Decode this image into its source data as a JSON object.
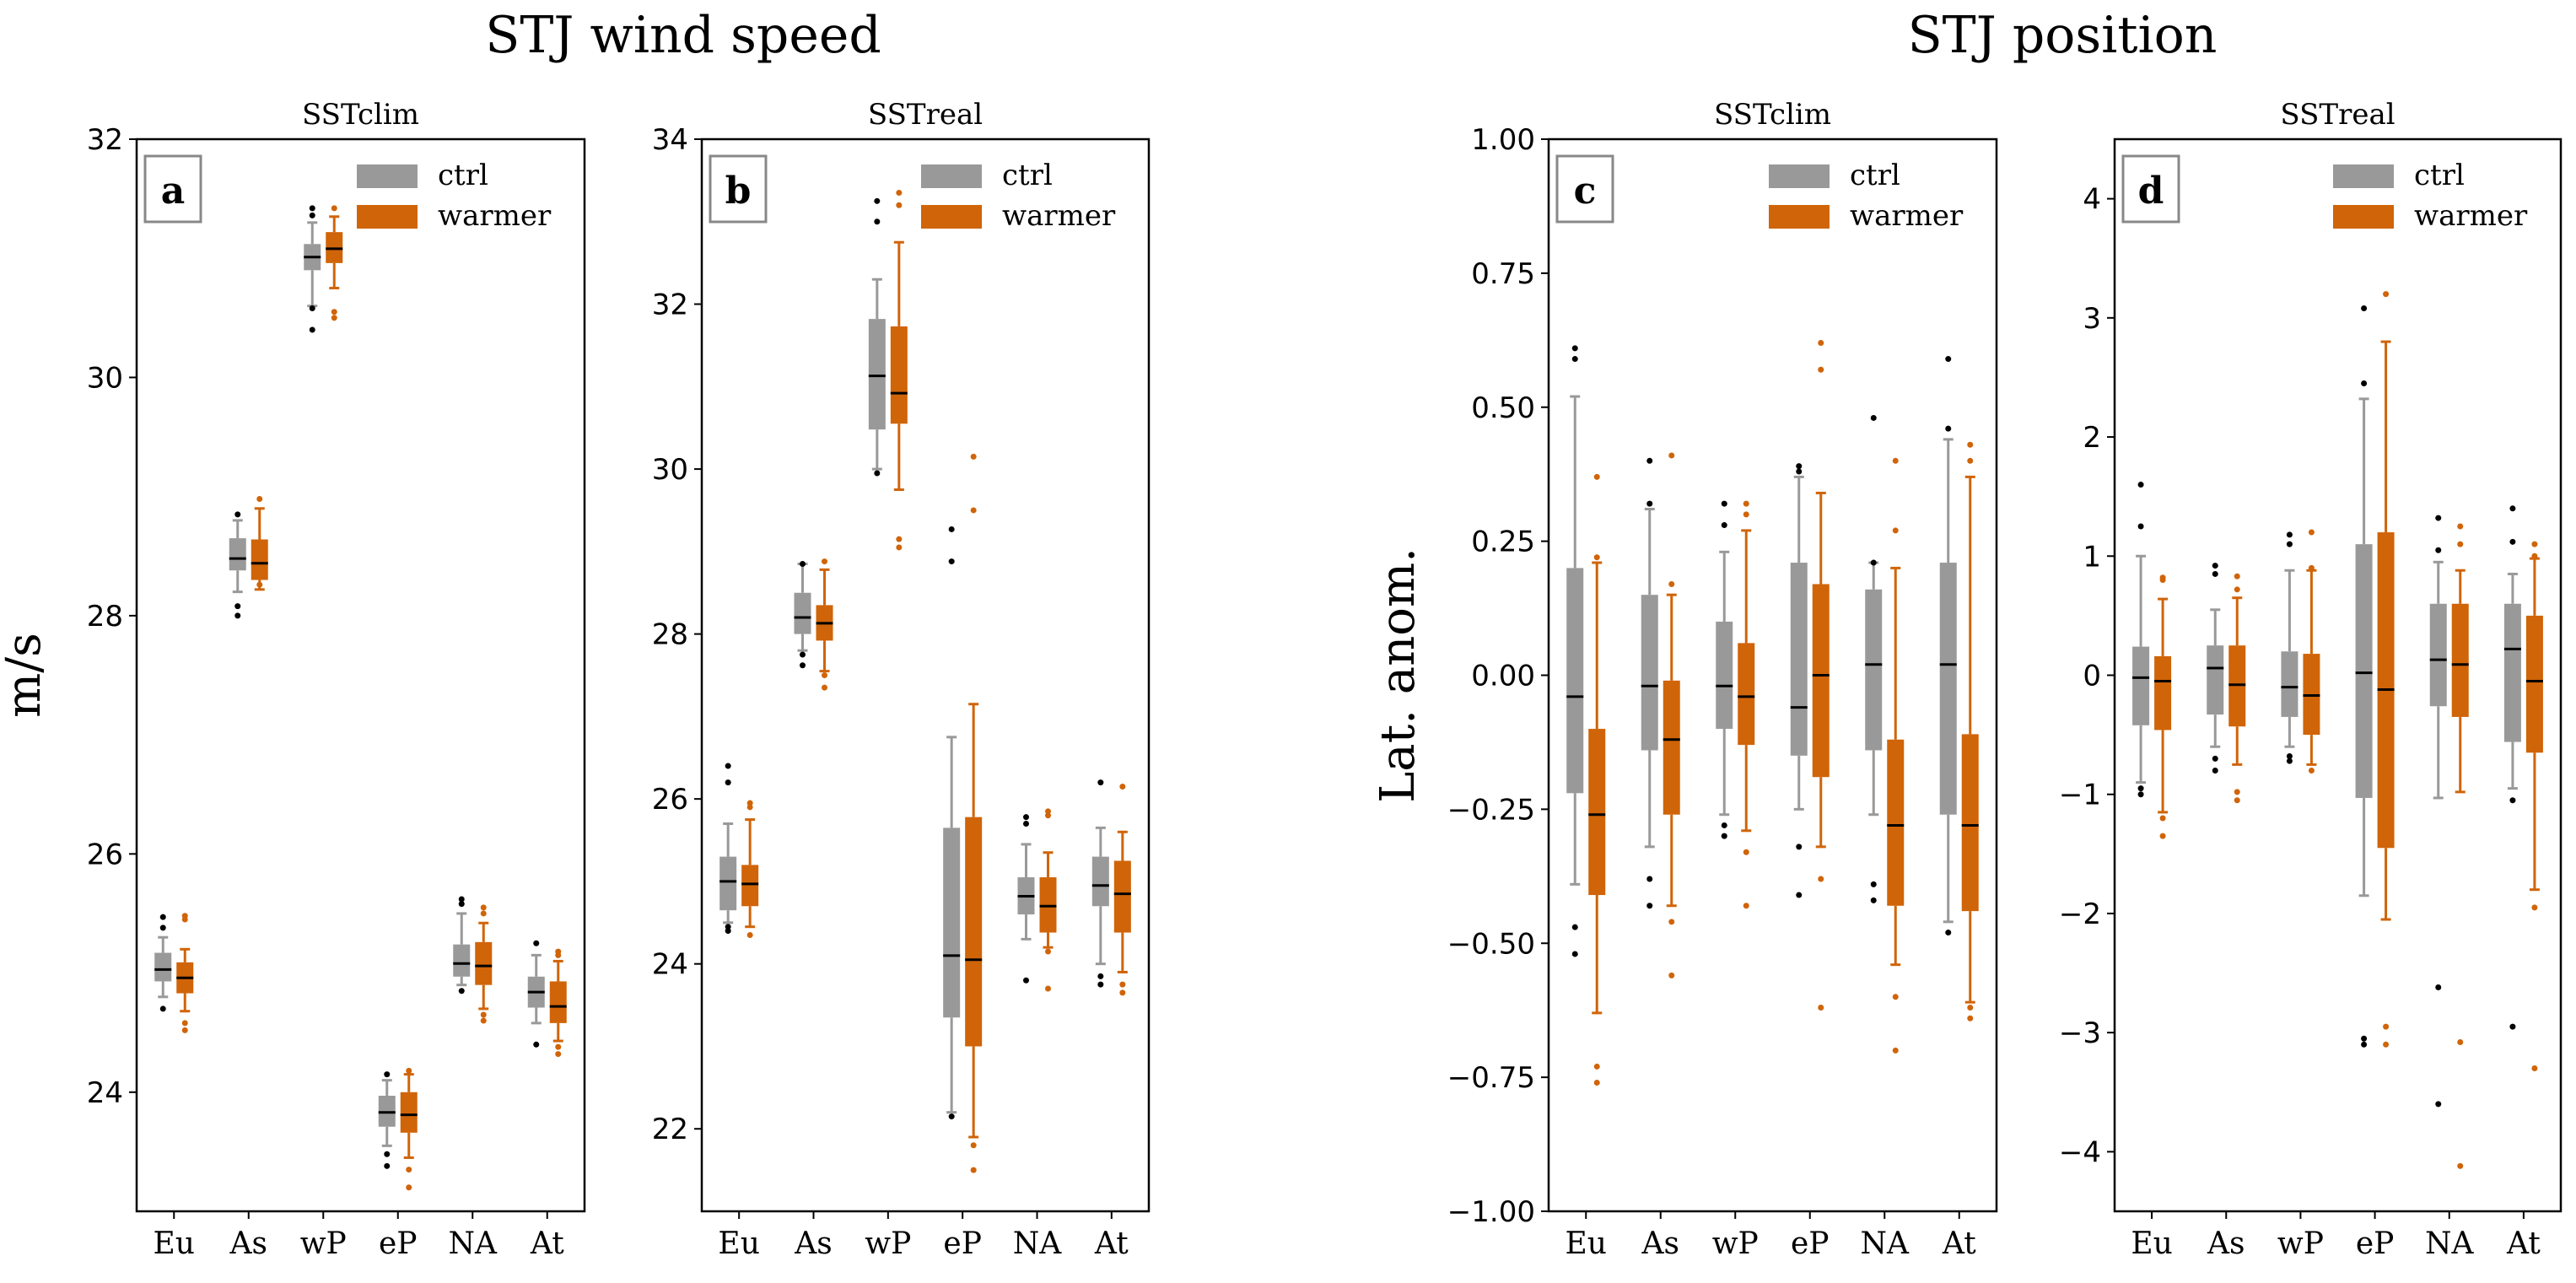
{
  "figure": {
    "title_left": "STJ wind speed",
    "title_right": "STJ position",
    "colors": {
      "ctrl": "#999999",
      "warmer": "#d06408",
      "median": "#000000",
      "flier_ctrl": "#000000"
    }
  },
  "chart_data": [
    {
      "type": "box",
      "panel_letter": "a",
      "title": "SSTclim",
      "ylabel": "m/s",
      "ylim": [
        23.0,
        32.0
      ],
      "yticks": [
        24,
        26,
        28,
        30,
        32
      ],
      "ytick_labels": [
        "24",
        "26",
        "28",
        "30",
        "32"
      ],
      "categories": [
        "Eu",
        "As",
        "wP",
        "eP",
        "NA",
        "At"
      ],
      "legend": {
        "position": "top-right",
        "entries": [
          "ctrl",
          "warmer"
        ]
      },
      "series": [
        {
          "name": "ctrl",
          "boxes": [
            {
              "wlo": 24.8,
              "q1": 24.93,
              "med": 25.03,
              "q3": 25.17,
              "whi": 25.3,
              "fliers": [
                24.7,
                25.38,
                25.47
              ]
            },
            {
              "wlo": 28.2,
              "q1": 28.38,
              "med": 28.48,
              "q3": 28.65,
              "whi": 28.8,
              "fliers": [
                28.0,
                28.08,
                28.85
              ]
            },
            {
              "wlo": 30.6,
              "q1": 30.9,
              "med": 31.01,
              "q3": 31.12,
              "whi": 31.3,
              "fliers": [
                30.4,
                30.58,
                31.36,
                31.42
              ]
            },
            {
              "wlo": 23.55,
              "q1": 23.71,
              "med": 23.83,
              "q3": 23.97,
              "whi": 24.1,
              "fliers": [
                23.38,
                23.48,
                24.15
              ]
            },
            {
              "wlo": 24.9,
              "q1": 24.97,
              "med": 25.08,
              "q3": 25.24,
              "whi": 25.5,
              "fliers": [
                24.85,
                25.58,
                25.62
              ]
            },
            {
              "wlo": 24.58,
              "q1": 24.71,
              "med": 24.84,
              "q3": 24.97,
              "whi": 25.15,
              "fliers": [
                24.4,
                25.25
              ]
            }
          ]
        },
        {
          "name": "warmer",
          "boxes": [
            {
              "wlo": 24.68,
              "q1": 24.83,
              "med": 24.96,
              "q3": 25.09,
              "whi": 25.2,
              "fliers": [
                24.52,
                24.58,
                25.45,
                25.48
              ]
            },
            {
              "wlo": 28.22,
              "q1": 28.3,
              "med": 28.44,
              "q3": 28.64,
              "whi": 28.9,
              "fliers": [
                28.26,
                28.98
              ]
            },
            {
              "wlo": 30.75,
              "q1": 30.96,
              "med": 31.08,
              "q3": 31.22,
              "whi": 31.35,
              "fliers": [
                30.5,
                30.55,
                31.42
              ]
            },
            {
              "wlo": 23.45,
              "q1": 23.66,
              "med": 23.81,
              "q3": 24.0,
              "whi": 24.15,
              "fliers": [
                23.2,
                23.35,
                24.18
              ]
            },
            {
              "wlo": 24.7,
              "q1": 24.9,
              "med": 25.06,
              "q3": 25.26,
              "whi": 25.42,
              "fliers": [
                24.6,
                24.65,
                25.5,
                25.55
              ]
            },
            {
              "wlo": 24.43,
              "q1": 24.58,
              "med": 24.72,
              "q3": 24.93,
              "whi": 25.1,
              "fliers": [
                24.32,
                24.38,
                25.15,
                25.18
              ]
            }
          ]
        }
      ]
    },
    {
      "type": "box",
      "panel_letter": "b",
      "title": "SSTreal",
      "ylabel": "",
      "ylim": [
        21.0,
        34.0
      ],
      "yticks": [
        22,
        24,
        26,
        28,
        30,
        32,
        34
      ],
      "ytick_labels": [
        "22",
        "24",
        "26",
        "28",
        "30",
        "32",
        "34"
      ],
      "categories": [
        "Eu",
        "As",
        "wP",
        "eP",
        "NA",
        "At"
      ],
      "legend": {
        "position": "top-right",
        "entries": [
          "ctrl",
          "warmer"
        ]
      },
      "series": [
        {
          "name": "ctrl",
          "boxes": [
            {
              "wlo": 24.5,
              "q1": 24.65,
              "med": 25.0,
              "q3": 25.3,
              "whi": 25.7,
              "fliers": [
                24.4,
                24.45,
                26.2,
                26.4
              ]
            },
            {
              "wlo": 27.8,
              "q1": 28.0,
              "med": 28.2,
              "q3": 28.5,
              "whi": 28.85,
              "fliers": [
                27.62,
                27.75,
                28.85
              ]
            },
            {
              "wlo": 30.0,
              "q1": 30.48,
              "med": 31.13,
              "q3": 31.82,
              "whi": 32.3,
              "fliers": [
                29.95,
                33.0,
                33.25
              ]
            },
            {
              "wlo": 22.2,
              "q1": 23.35,
              "med": 24.1,
              "q3": 25.65,
              "whi": 26.75,
              "fliers": [
                22.15,
                28.88,
                29.27
              ]
            },
            {
              "wlo": 24.3,
              "q1": 24.6,
              "med": 24.82,
              "q3": 25.05,
              "whi": 25.45,
              "fliers": [
                23.8,
                25.7,
                25.78
              ]
            },
            {
              "wlo": 24.0,
              "q1": 24.7,
              "med": 24.95,
              "q3": 25.3,
              "whi": 25.65,
              "fliers": [
                23.75,
                23.85,
                26.2
              ]
            }
          ]
        },
        {
          "name": "warmer",
          "boxes": [
            {
              "wlo": 24.45,
              "q1": 24.7,
              "med": 24.97,
              "q3": 25.2,
              "whi": 25.75,
              "fliers": [
                24.35,
                25.9,
                25.95
              ]
            },
            {
              "wlo": 27.55,
              "q1": 27.92,
              "med": 28.13,
              "q3": 28.35,
              "whi": 28.78,
              "fliers": [
                27.35,
                27.5,
                28.88
              ]
            },
            {
              "wlo": 29.75,
              "q1": 30.55,
              "med": 30.92,
              "q3": 31.73,
              "whi": 32.75,
              "fliers": [
                29.05,
                29.15,
                33.2,
                33.35
              ]
            },
            {
              "wlo": 21.9,
              "q1": 23.0,
              "med": 24.05,
              "q3": 25.78,
              "whi": 27.15,
              "fliers": [
                21.5,
                21.8,
                29.5,
                30.15
              ]
            },
            {
              "wlo": 24.2,
              "q1": 24.38,
              "med": 24.7,
              "q3": 25.05,
              "whi": 25.35,
              "fliers": [
                23.7,
                24.15,
                25.8,
                25.85
              ]
            },
            {
              "wlo": 23.9,
              "q1": 24.38,
              "med": 24.85,
              "q3": 25.25,
              "whi": 25.6,
              "fliers": [
                23.65,
                23.75,
                26.15
              ]
            }
          ]
        }
      ]
    },
    {
      "type": "box",
      "panel_letter": "c",
      "title": "SSTclim",
      "ylabel": "Lat. anom.",
      "ylim": [
        -1.0,
        1.0
      ],
      "yticks": [
        -1.0,
        -0.75,
        -0.5,
        -0.25,
        0.0,
        0.25,
        0.5,
        0.75,
        1.0
      ],
      "ytick_labels": [
        "−1.00",
        "−0.75",
        "−0.50",
        "−0.25",
        "0.00",
        "0.25",
        "0.50",
        "0.75",
        "1.00"
      ],
      "categories": [
        "Eu",
        "As",
        "wP",
        "eP",
        "NA",
        "At"
      ],
      "legend": {
        "position": "top-right",
        "entries": [
          "ctrl",
          "warmer"
        ]
      },
      "series": [
        {
          "name": "ctrl",
          "boxes": [
            {
              "wlo": -0.39,
              "q1": -0.22,
              "med": -0.04,
              "q3": 0.2,
              "whi": 0.52,
              "fliers": [
                -0.52,
                -0.47,
                0.59,
                0.61
              ]
            },
            {
              "wlo": -0.32,
              "q1": -0.14,
              "med": -0.02,
              "q3": 0.15,
              "whi": 0.31,
              "fliers": [
                -0.43,
                -0.38,
                0.32,
                0.4
              ]
            },
            {
              "wlo": -0.26,
              "q1": -0.1,
              "med": -0.02,
              "q3": 0.1,
              "whi": 0.23,
              "fliers": [
                -0.3,
                -0.28,
                0.28,
                0.32
              ]
            },
            {
              "wlo": -0.25,
              "q1": -0.15,
              "med": -0.06,
              "q3": 0.21,
              "whi": 0.37,
              "fliers": [
                -0.41,
                -0.32,
                0.38,
                0.39
              ]
            },
            {
              "wlo": -0.26,
              "q1": -0.14,
              "med": 0.02,
              "q3": 0.16,
              "whi": 0.21,
              "fliers": [
                -0.42,
                -0.39,
                0.21,
                0.48
              ]
            },
            {
              "wlo": -0.46,
              "q1": -0.26,
              "med": 0.02,
              "q3": 0.21,
              "whi": 0.44,
              "fliers": [
                -0.48,
                0.46,
                0.59
              ]
            }
          ]
        },
        {
          "name": "warmer",
          "boxes": [
            {
              "wlo": -0.63,
              "q1": -0.41,
              "med": -0.26,
              "q3": -0.1,
              "whi": 0.21,
              "fliers": [
                -0.76,
                -0.73,
                0.22,
                0.37
              ]
            },
            {
              "wlo": -0.43,
              "q1": -0.26,
              "med": -0.12,
              "q3": -0.01,
              "whi": 0.15,
              "fliers": [
                -0.56,
                -0.46,
                0.17,
                0.41
              ]
            },
            {
              "wlo": -0.29,
              "q1": -0.13,
              "med": -0.04,
              "q3": 0.06,
              "whi": 0.27,
              "fliers": [
                -0.43,
                -0.33,
                0.3,
                0.32
              ]
            },
            {
              "wlo": -0.32,
              "q1": -0.19,
              "med": 0.0,
              "q3": 0.17,
              "whi": 0.34,
              "fliers": [
                -0.62,
                -0.38,
                0.57,
                0.62
              ]
            },
            {
              "wlo": -0.54,
              "q1": -0.43,
              "med": -0.28,
              "q3": -0.12,
              "whi": 0.2,
              "fliers": [
                -0.7,
                -0.6,
                0.27,
                0.4
              ]
            },
            {
              "wlo": -0.61,
              "q1": -0.44,
              "med": -0.28,
              "q3": -0.11,
              "whi": 0.37,
              "fliers": [
                -0.64,
                -0.62,
                0.4,
                0.43
              ]
            }
          ]
        }
      ]
    },
    {
      "type": "box",
      "panel_letter": "d",
      "title": "SSTreal",
      "ylabel": "",
      "ylim": [
        -4.5,
        4.5
      ],
      "yticks": [
        -4,
        -3,
        -2,
        -1,
        0,
        1,
        2,
        3,
        4
      ],
      "ytick_labels": [
        "−4",
        "−3",
        "−2",
        "−1",
        "0",
        "1",
        "2",
        "3",
        "4"
      ],
      "categories": [
        "Eu",
        "As",
        "wP",
        "eP",
        "NA",
        "At"
      ],
      "legend": {
        "position": "top-right",
        "entries": [
          "ctrl",
          "warmer"
        ]
      },
      "series": [
        {
          "name": "ctrl",
          "boxes": [
            {
              "wlo": -0.9,
              "q1": -0.42,
              "med": -0.02,
              "q3": 0.24,
              "whi": 1.0,
              "fliers": [
                -1.0,
                -0.95,
                1.25,
                1.6
              ]
            },
            {
              "wlo": -0.6,
              "q1": -0.33,
              "med": 0.06,
              "q3": 0.25,
              "whi": 0.55,
              "fliers": [
                -0.8,
                -0.7,
                0.85,
                0.92
              ]
            },
            {
              "wlo": -0.6,
              "q1": -0.35,
              "med": -0.1,
              "q3": 0.2,
              "whi": 0.88,
              "fliers": [
                -0.72,
                -0.68,
                1.1,
                1.18
              ]
            },
            {
              "wlo": -1.85,
              "q1": -1.03,
              "med": 0.02,
              "q3": 1.1,
              "whi": 2.32,
              "fliers": [
                -3.1,
                -3.05,
                2.45,
                3.08
              ]
            },
            {
              "wlo": -1.03,
              "q1": -0.26,
              "med": 0.13,
              "q3": 0.6,
              "whi": 0.95,
              "fliers": [
                -3.6,
                -2.62,
                1.05,
                1.32
              ]
            },
            {
              "wlo": -0.95,
              "q1": -0.56,
              "med": 0.22,
              "q3": 0.6,
              "whi": 0.85,
              "fliers": [
                -2.95,
                -1.05,
                1.12,
                1.4
              ]
            }
          ]
        },
        {
          "name": "warmer",
          "boxes": [
            {
              "wlo": -1.15,
              "q1": -0.46,
              "med": -0.05,
              "q3": 0.16,
              "whi": 0.64,
              "fliers": [
                -1.35,
                -1.2,
                0.8,
                0.82
              ]
            },
            {
              "wlo": -0.75,
              "q1": -0.43,
              "med": -0.08,
              "q3": 0.25,
              "whi": 0.65,
              "fliers": [
                -1.05,
                -0.98,
                0.72,
                0.83
              ]
            },
            {
              "wlo": -0.75,
              "q1": -0.5,
              "med": -0.17,
              "q3": 0.18,
              "whi": 0.88,
              "fliers": [
                -0.8,
                0.9,
                1.2
              ]
            },
            {
              "wlo": -2.05,
              "q1": -1.45,
              "med": -0.12,
              "q3": 1.2,
              "whi": 2.8,
              "fliers": [
                -3.1,
                -2.95,
                3.2
              ]
            },
            {
              "wlo": -0.98,
              "q1": -0.35,
              "med": 0.09,
              "q3": 0.6,
              "whi": 0.88,
              "fliers": [
                -4.12,
                -3.08,
                1.1,
                1.25
              ]
            },
            {
              "wlo": -1.8,
              "q1": -0.65,
              "med": -0.05,
              "q3": 0.5,
              "whi": 0.98,
              "fliers": [
                -3.3,
                -1.95,
                1.0,
                1.1
              ]
            }
          ]
        }
      ]
    }
  ]
}
